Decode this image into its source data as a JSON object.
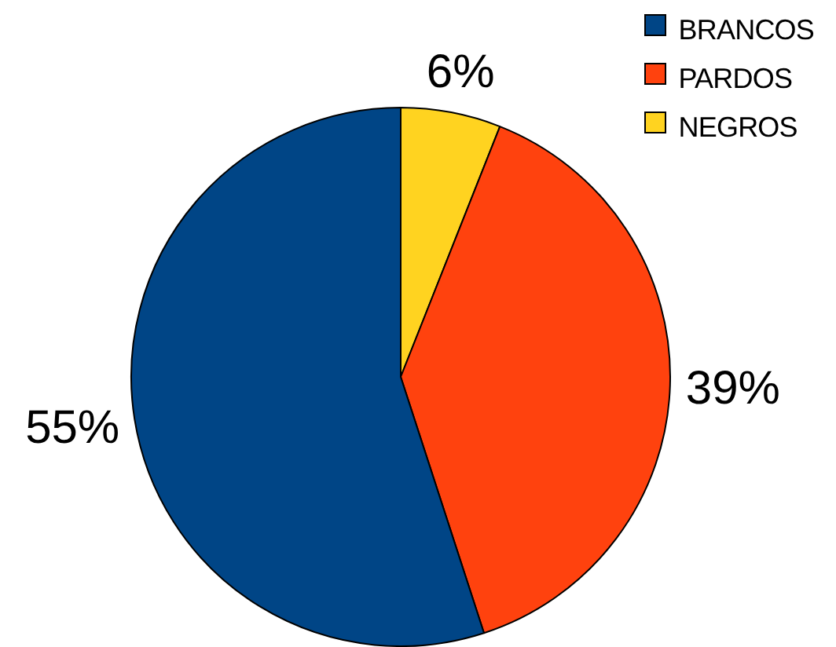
{
  "chart_data": {
    "type": "pie",
    "categories": [
      "BRANCOS",
      "PARDOS",
      "NEGROS"
    ],
    "values": [
      55,
      39,
      6
    ],
    "colors": [
      "#004586",
      "#ff420e",
      "#ffd320"
    ],
    "value_labels": [
      "55%",
      "39%",
      "6%"
    ],
    "legend": "top right"
  }
}
